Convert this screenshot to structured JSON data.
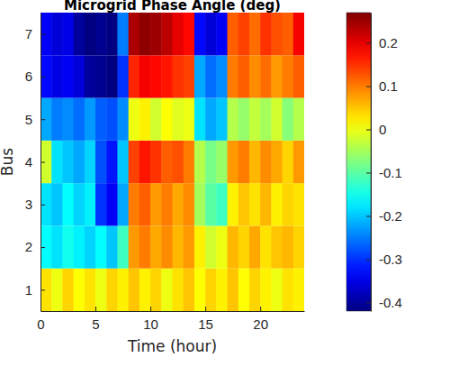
{
  "chart_data": {
    "type": "heatmap",
    "title": "Microgrid Phase Angle (deg)",
    "x_label": "Time (hour)",
    "y_label": "Bus",
    "x": [
      0,
      1,
      2,
      3,
      4,
      5,
      6,
      7,
      8,
      9,
      10,
      11,
      12,
      13,
      14,
      15,
      16,
      17,
      18,
      19,
      20,
      21,
      22,
      23
    ],
    "y": [
      1,
      2,
      3,
      4,
      5,
      6,
      7
    ],
    "z": [
      [
        0.03,
        0.0,
        0.04,
        0.01,
        0.03,
        0.0,
        0.04,
        0.02,
        0.05,
        0.02,
        0.04,
        0.0,
        0.03,
        0.05,
        0.01,
        0.04,
        0.02,
        0.05,
        0.01,
        0.04,
        0.02,
        0.0,
        0.03,
        0.02
      ],
      [
        -0.16,
        -0.18,
        -0.15,
        -0.17,
        -0.19,
        -0.16,
        -0.2,
        -0.12,
        0.08,
        0.1,
        0.07,
        0.09,
        0.06,
        0.08,
        0.02,
        -0.02,
        0.0,
        0.06,
        0.04,
        0.07,
        0.03,
        0.05,
        0.06,
        0.04
      ],
      [
        -0.18,
        -0.2,
        -0.16,
        -0.19,
        -0.17,
        -0.3,
        -0.34,
        -0.22,
        0.1,
        0.12,
        0.08,
        0.1,
        0.07,
        0.09,
        -0.05,
        -0.1,
        -0.12,
        0.02,
        0.05,
        0.03,
        0.06,
        0.02,
        0.04,
        0.03
      ],
      [
        -0.02,
        -0.18,
        -0.2,
        -0.22,
        -0.19,
        -0.28,
        -0.32,
        -0.2,
        0.14,
        0.17,
        0.15,
        0.12,
        0.13,
        0.1,
        -0.04,
        -0.08,
        -0.06,
        0.08,
        0.1,
        0.06,
        0.09,
        0.07,
        0.04,
        0.08
      ],
      [
        -0.22,
        -0.25,
        -0.24,
        -0.26,
        -0.23,
        -0.27,
        -0.28,
        -0.24,
        0.0,
        0.02,
        -0.02,
        0.01,
        -0.01,
        0.0,
        -0.18,
        -0.22,
        -0.2,
        -0.04,
        -0.06,
        -0.03,
        -0.05,
        -0.02,
        -0.07,
        -0.04
      ],
      [
        -0.33,
        -0.35,
        -0.34,
        -0.36,
        -0.4,
        -0.41,
        -0.42,
        -0.3,
        0.16,
        0.19,
        0.18,
        0.17,
        0.15,
        0.14,
        -0.22,
        -0.26,
        -0.24,
        0.1,
        0.12,
        0.09,
        0.11,
        0.08,
        0.1,
        0.12
      ],
      [
        -0.34,
        -0.36,
        -0.35,
        -0.4,
        -0.42,
        -0.41,
        -0.42,
        -0.25,
        0.24,
        0.26,
        0.25,
        0.23,
        0.2,
        0.18,
        -0.33,
        -0.36,
        -0.34,
        0.12,
        0.14,
        0.11,
        0.15,
        0.13,
        0.12,
        0.19
      ]
    ],
    "xlim": [
      0,
      24
    ],
    "xticks": [
      0,
      5,
      10,
      15,
      20
    ],
    "ylim": [
      0.5,
      7.5
    ],
    "yticks": [
      1,
      2,
      3,
      4,
      5,
      6,
      7
    ],
    "colorbar": {
      "lim": [
        -0.42,
        0.27
      ],
      "ticks": [
        -0.4,
        -0.3,
        -0.2,
        -0.1,
        0,
        0.1,
        0.2
      ]
    }
  }
}
